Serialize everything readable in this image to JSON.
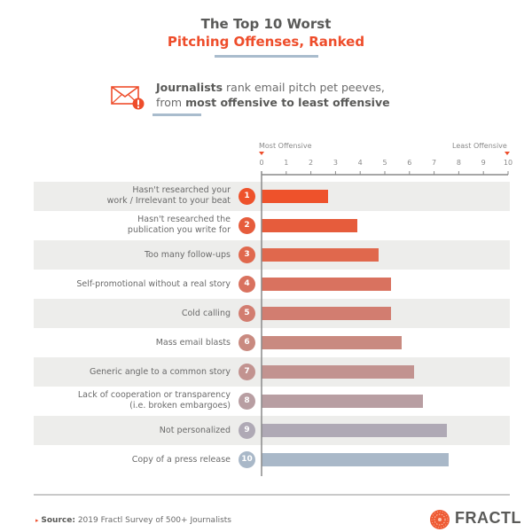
{
  "header": {
    "title_line1": "The Top 10 Worst",
    "title_line2": "Pitching Offenses, Ranked",
    "subtitle_bold1": "Journalists",
    "subtitle_text1": " rank email pitch pet peeves,",
    "subtitle_text2": "from ",
    "subtitle_bold2": "most offensive to least offensive",
    "icon": "email-alert-icon"
  },
  "colors": {
    "accent": "#ee4d2b",
    "underline": "#a9bccd",
    "row_shade": "#ededeb"
  },
  "chart_data": {
    "type": "bar",
    "orientation": "horizontal",
    "title": "The Top 10 Worst Pitching Offenses, Ranked",
    "axis_left_label": "Most Offensive",
    "axis_right_label": "Least Offensive",
    "xlim": [
      0,
      10
    ],
    "ticks": [
      "0",
      "1",
      "2",
      "3",
      "4",
      "5",
      "6",
      "7",
      "8",
      "9",
      "10"
    ],
    "categories": [
      {
        "rank": "1",
        "line1": "Hasn't researched your",
        "line2": "work / Irrelevant to your beat"
      },
      {
        "rank": "2",
        "line1": "Hasn't researched the",
        "line2": "publication you write for"
      },
      {
        "rank": "3",
        "line1": "Too many follow-ups",
        "line2": ""
      },
      {
        "rank": "4",
        "line1": "Self-promotional without a real story",
        "line2": ""
      },
      {
        "rank": "5",
        "line1": "Cold calling",
        "line2": ""
      },
      {
        "rank": "6",
        "line1": "Mass email blasts",
        "line2": ""
      },
      {
        "rank": "7",
        "line1": "Generic angle to a common story",
        "line2": ""
      },
      {
        "rank": "8",
        "line1": "Lack of cooperation or transparency",
        "line2": "(i.e. broken embargoes)"
      },
      {
        "rank": "9",
        "line1": "Not personalized",
        "line2": ""
      },
      {
        "rank": "10",
        "line1": "Copy of a press release",
        "line2": ""
      }
    ],
    "values": [
      2.7,
      3.9,
      4.75,
      5.25,
      5.26,
      5.7,
      6.2,
      6.55,
      7.5,
      7.6
    ],
    "colors": [
      "#ee522b",
      "#e65c3c",
      "#e0684d",
      "#d9725f",
      "#d27d70",
      "#c98a80",
      "#c29390",
      "#b89ea2",
      "#afa9b5",
      "#a9b8c8"
    ]
  },
  "footer": {
    "source_label": "Source:",
    "source_text": " 2019 Fractl Survey of 500+ Journalists",
    "brand": "FRACTL"
  }
}
